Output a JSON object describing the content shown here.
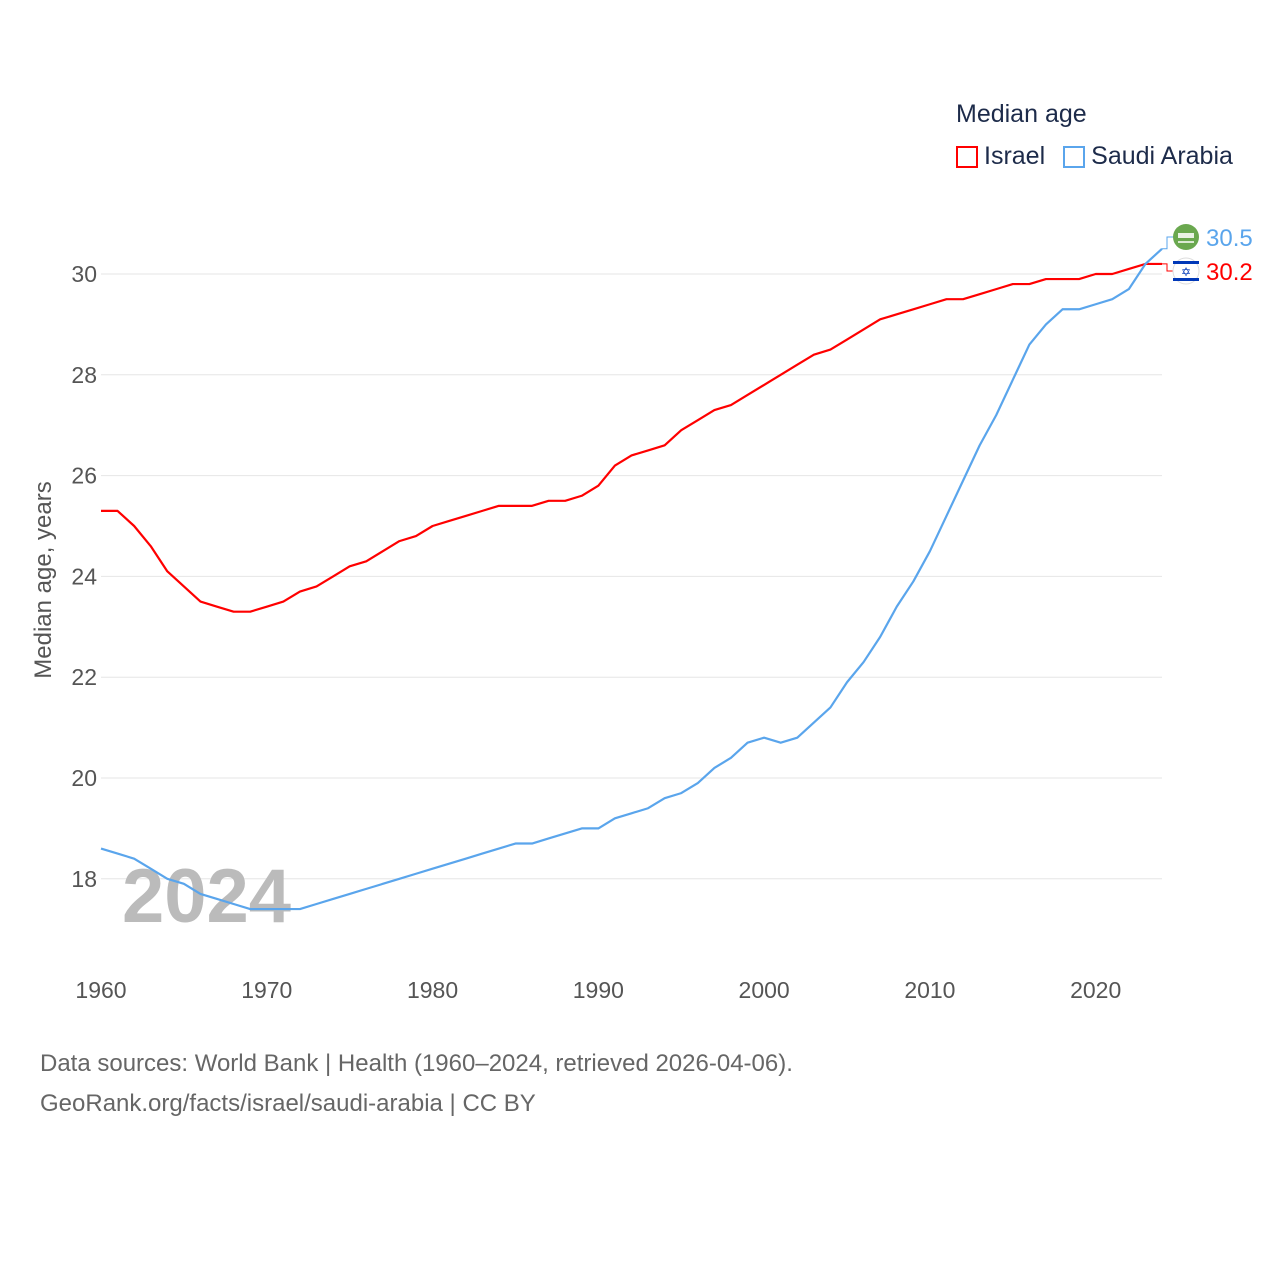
{
  "chart_data": {
    "type": "line",
    "title": "Median age",
    "xlabel": "",
    "ylabel": "Median age, years",
    "xlim": [
      1960,
      2024
    ],
    "ylim": [
      16.9,
      31.1
    ],
    "x_ticks": [
      1960,
      1970,
      1980,
      1990,
      2000,
      2010,
      2020
    ],
    "y_ticks": [
      18,
      20,
      22,
      24,
      26,
      28,
      30
    ],
    "grid": true,
    "legend_placement": "top-right",
    "year_watermark": "2024",
    "x": [
      1960,
      1961,
      1962,
      1963,
      1964,
      1965,
      1966,
      1967,
      1968,
      1969,
      1970,
      1971,
      1972,
      1973,
      1974,
      1975,
      1976,
      1977,
      1978,
      1979,
      1980,
      1981,
      1982,
      1983,
      1984,
      1985,
      1986,
      1987,
      1988,
      1989,
      1990,
      1991,
      1992,
      1993,
      1994,
      1995,
      1996,
      1997,
      1998,
      1999,
      2000,
      2001,
      2002,
      2003,
      2004,
      2005,
      2006,
      2007,
      2008,
      2009,
      2010,
      2011,
      2012,
      2013,
      2014,
      2015,
      2016,
      2017,
      2018,
      2019,
      2020,
      2021,
      2022,
      2023,
      2024
    ],
    "series": [
      {
        "name": "Israel",
        "color": "#ff0000",
        "end_label": "30.2",
        "values": [
          25.3,
          25.3,
          25.0,
          24.6,
          24.1,
          23.8,
          23.5,
          23.4,
          23.3,
          23.3,
          23.4,
          23.5,
          23.7,
          23.8,
          24.0,
          24.2,
          24.3,
          24.5,
          24.7,
          24.8,
          25.0,
          25.1,
          25.2,
          25.3,
          25.4,
          25.4,
          25.4,
          25.5,
          25.5,
          25.6,
          25.8,
          26.2,
          26.4,
          26.5,
          26.6,
          26.9,
          27.1,
          27.3,
          27.4,
          27.6,
          27.8,
          28.0,
          28.2,
          28.4,
          28.5,
          28.7,
          28.9,
          29.1,
          29.2,
          29.3,
          29.4,
          29.5,
          29.5,
          29.6,
          29.7,
          29.8,
          29.8,
          29.9,
          29.9,
          29.9,
          30.0,
          30.0,
          30.1,
          30.2,
          30.2
        ]
      },
      {
        "name": "Saudi Arabia",
        "color": "#5aa5ec",
        "end_label": "30.5",
        "values": [
          18.6,
          18.5,
          18.4,
          18.2,
          18.0,
          17.9,
          17.7,
          17.6,
          17.5,
          17.4,
          17.4,
          17.4,
          17.4,
          17.5,
          17.6,
          17.7,
          17.8,
          17.9,
          18.0,
          18.1,
          18.2,
          18.3,
          18.4,
          18.5,
          18.6,
          18.7,
          18.7,
          18.8,
          18.9,
          19.0,
          19.0,
          19.2,
          19.3,
          19.4,
          19.6,
          19.7,
          19.9,
          20.2,
          20.4,
          20.7,
          20.8,
          20.7,
          20.8,
          21.1,
          21.4,
          21.9,
          22.3,
          22.8,
          23.4,
          23.9,
          24.5,
          25.2,
          25.9,
          26.6,
          27.2,
          27.9,
          28.6,
          29.0,
          29.3,
          29.3,
          29.4,
          29.5,
          29.7,
          30.2,
          30.5
        ]
      }
    ]
  },
  "footer": {
    "line1": "Data sources: World Bank | Health (1960–2024, retrieved 2026-04-06).",
    "line2": "GeoRank.org/facts/israel/saudi-arabia | CC BY"
  }
}
